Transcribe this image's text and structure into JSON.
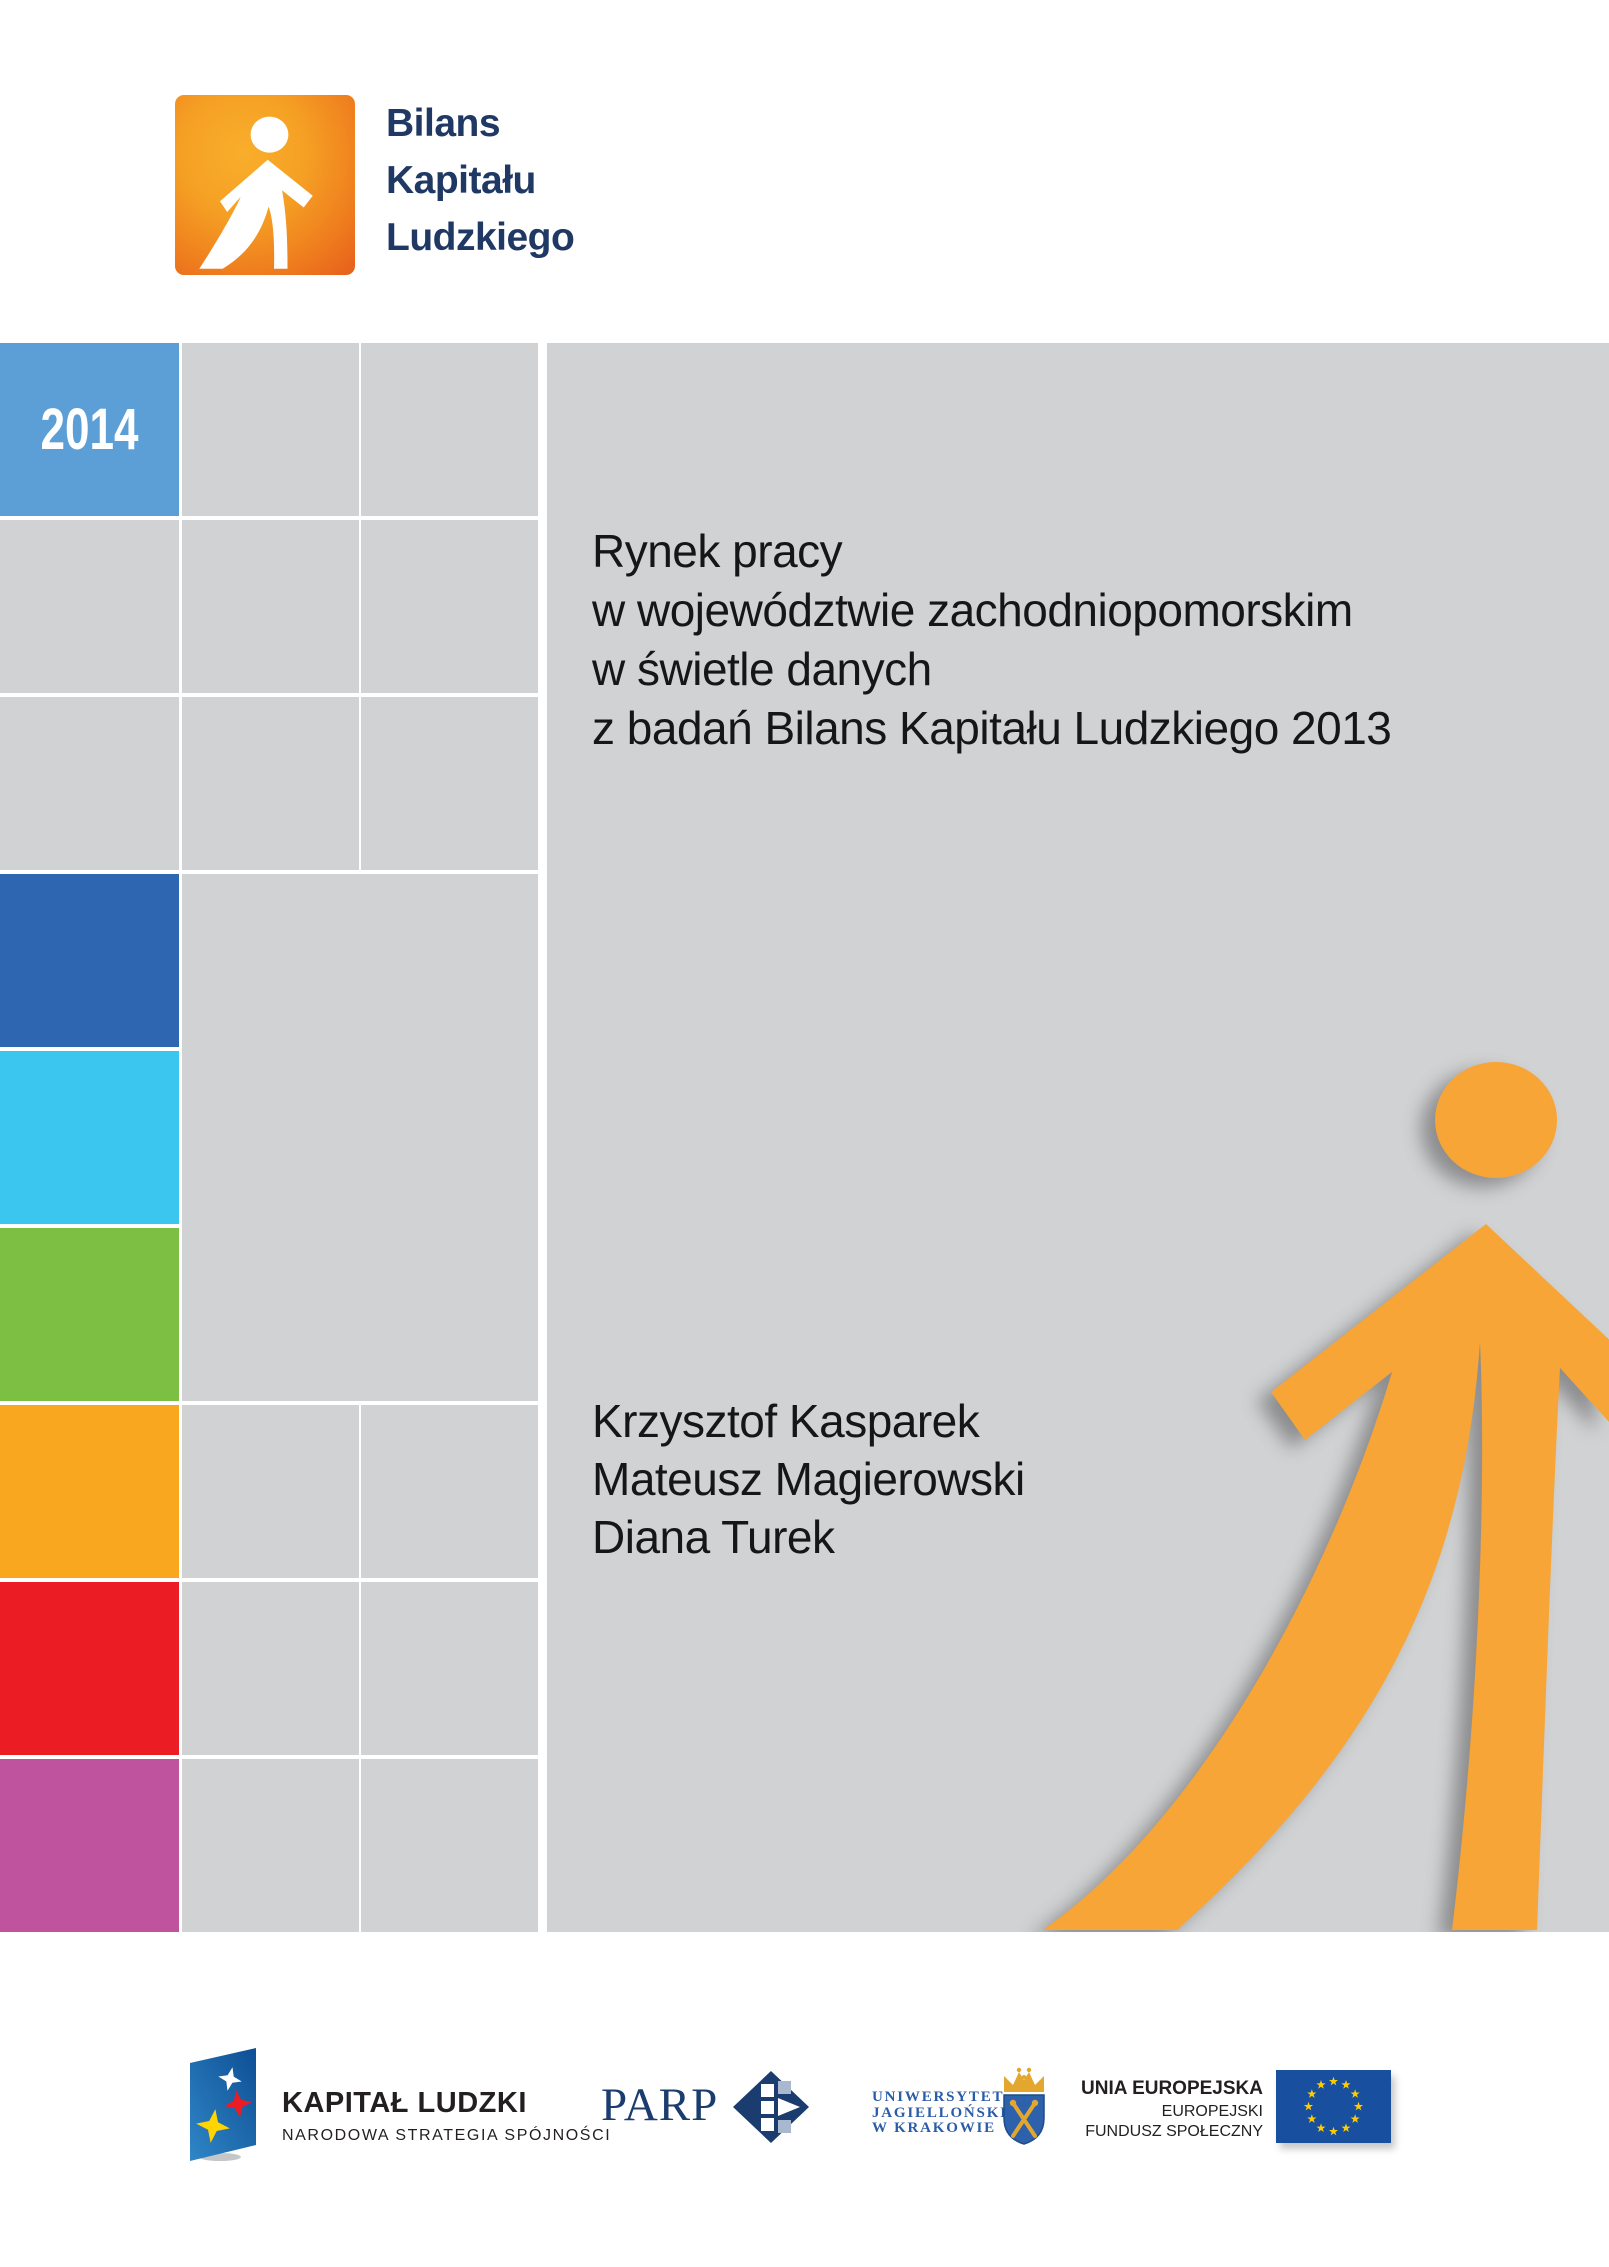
{
  "brand": {
    "line1": "Bilans",
    "line2": "Kapitału",
    "line3": "Ludzkiego"
  },
  "year": "2014",
  "title": {
    "line1": "Rynek pracy",
    "line2": "w województwie zachodniopomorskim",
    "line3": "w świetle danych",
    "line4": "z badań Bilans Kapitału Ludzkiego 2013"
  },
  "authors": [
    "Krzysztof Kasparek",
    "Mateusz Magierowski",
    "Diana Turek"
  ],
  "colors": {
    "panel_gray": "#D1D2D4",
    "year_blue": "#5C9ED6",
    "dark_blue": "#2F66B1",
    "cyan": "#3BC6F0",
    "green": "#7CBF42",
    "orange": "#F9A71F",
    "red": "#EC1C24",
    "magenta": "#C0539E",
    "figure_orange": "#F6A536",
    "brand_navy": "#1F3864",
    "parp_navy": "#1B3C6E",
    "uj_blue": "#2A5CA8",
    "eu_blue": "#194F9F",
    "eu_star_yellow": "#FFCC00"
  },
  "footer": {
    "kapital_ludzki": {
      "title": "KAPITAŁ LUDZKI",
      "subtitle": "NARODOWA STRATEGIA SPÓJNOŚCI"
    },
    "parp": {
      "name": "PARP"
    },
    "uj": {
      "line1": "UNIWERSYTET",
      "line2": "JAGIELLOŃSKI",
      "line3": "W KRAKOWIE"
    },
    "eu": {
      "line1": "UNIA EUROPEJSKA",
      "line2": "EUROPEJSKI",
      "line3": "FUNDUSZ SPOŁECZNY"
    }
  }
}
